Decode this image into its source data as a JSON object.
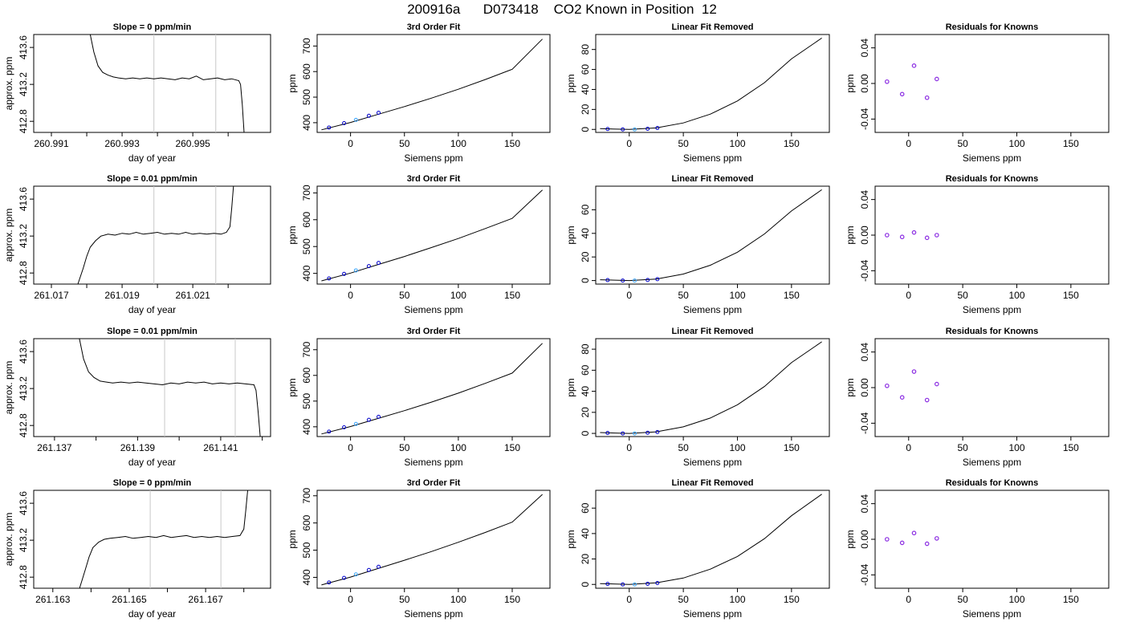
{
  "page": {
    "title": "200916a      D073418    CO2 Known in Position  12"
  },
  "labels": {
    "fit_title": "3rd Order Fit",
    "lin_title": "Linear Fit Removed",
    "res_title": "Residuals for Knowns",
    "siemens_xlabel": "Siemens ppm",
    "ppm_ylabel": "ppm",
    "ts_xlabel": "day of year",
    "ts_ylabel": "approx. ppm"
  },
  "chart_data": [
    {
      "row": 1,
      "timeseries": {
        "type": "line",
        "title": "Slope =  0  ppm/min",
        "xlabel": "day of year",
        "ylabel": "approx. ppm",
        "xlim": [
          260.9905,
          260.9972
        ],
        "ylim": [
          412.68,
          413.74
        ],
        "x_ticks": [
          260.991,
          260.993,
          260.995
        ],
        "x_minor_ticks": [
          260.992,
          260.994,
          260.996
        ],
        "y_ticks": [
          412.8,
          413.2,
          413.6
        ],
        "vlines": [
          260.9939,
          260.99565
        ],
        "x": [
          260.9921,
          260.9922,
          260.99232,
          260.99245,
          260.9926,
          260.99275,
          260.9929,
          260.9931,
          260.9933,
          260.9935,
          260.9937,
          260.9939,
          260.9941,
          260.9943,
          260.9945,
          260.9947,
          260.9949,
          260.9951,
          260.9953,
          260.9955,
          260.9957,
          260.9959,
          260.9961,
          260.9963,
          260.99635,
          260.9964,
          260.99645
        ],
        "y": [
          413.74,
          413.55,
          413.4,
          413.33,
          413.3,
          413.28,
          413.27,
          413.26,
          413.27,
          413.26,
          413.27,
          413.26,
          413.27,
          413.26,
          413.25,
          413.27,
          413.26,
          413.29,
          413.25,
          413.26,
          413.27,
          413.25,
          413.26,
          413.24,
          413.2,
          412.98,
          412.68
        ]
      },
      "fit": {
        "type": "line",
        "title": "3rd Order Fit",
        "xlabel": "Siemens ppm",
        "ylabel": "ppm",
        "xlim": [
          -31,
          185
        ],
        "ylim": [
          362,
          745
        ],
        "x_ticks": [
          0,
          50,
          100,
          150
        ],
        "y_ticks": [
          400,
          500,
          600,
          700
        ],
        "curve_x": [
          -27,
          0,
          25,
          50,
          75,
          100,
          125,
          150,
          178
        ],
        "curve_y": [
          372,
          401,
          432,
          463,
          496,
          531,
          569,
          609,
          727
        ],
        "points_x": [
          -20,
          -6,
          5,
          17,
          26
        ],
        "points_y": [
          381,
          398,
          411,
          427,
          439
        ]
      },
      "linear_removed": {
        "type": "line",
        "title": "Linear Fit Removed",
        "xlabel": "Siemens ppm",
        "ylabel": "ppm",
        "xlim": [
          -31,
          185
        ],
        "ylim": [
          -3,
          95
        ],
        "x_ticks": [
          0,
          50,
          100,
          150
        ],
        "y_ticks": [
          0,
          20,
          40,
          60,
          80
        ],
        "curve_x": [
          -27,
          0,
          25,
          50,
          75,
          100,
          125,
          150,
          178
        ],
        "curve_y": [
          0.8,
          0.0,
          1.5,
          6.5,
          15.3,
          28.5,
          46.8,
          70.6,
          91.5
        ],
        "points_x": [
          -20,
          -6,
          5,
          17,
          26
        ],
        "points_y": [
          0.4,
          0.0,
          0.0,
          0.6,
          1.4
        ]
      },
      "residuals": {
        "type": "scatter",
        "title": "Residuals for Knowns",
        "xlabel": "Siemens ppm",
        "ylabel": "ppm",
        "xlim": [
          -31,
          185
        ],
        "ylim": [
          -0.055,
          0.055
        ],
        "x_ticks": [
          0,
          50,
          100,
          150
        ],
        "y_ticks": [
          -0.04,
          0.0,
          0.04
        ],
        "y_tick_labels": [
          "-0.04",
          "0.00",
          "0.04"
        ],
        "x": [
          -20,
          -6,
          5,
          17,
          26
        ],
        "y": [
          0.002,
          -0.012,
          0.02,
          -0.016,
          0.005
        ]
      }
    },
    {
      "row": 2,
      "timeseries": {
        "type": "line",
        "title": "Slope =  0.01  ppm/min",
        "xlabel": "day of year",
        "ylabel": "approx. ppm",
        "xlim": [
          261.0165,
          261.0232
        ],
        "ylim": [
          412.68,
          413.74
        ],
        "x_ticks": [
          261.017,
          261.019,
          261.021
        ],
        "x_minor_ticks": [
          261.018,
          261.02,
          261.022
        ],
        "y_ticks": [
          412.8,
          413.2,
          413.6
        ],
        "vlines": [
          261.0199,
          261.02165
        ],
        "x": [
          261.01775,
          261.0179,
          261.018,
          261.0181,
          261.01825,
          261.0184,
          261.0186,
          261.0188,
          261.019,
          261.0192,
          261.0194,
          261.0196,
          261.0198,
          261.02,
          261.0202,
          261.0204,
          261.0206,
          261.0208,
          261.021,
          261.0212,
          261.0214,
          261.0216,
          261.0218,
          261.02195,
          261.02205,
          261.0221,
          261.02215
        ],
        "y": [
          412.68,
          412.85,
          412.98,
          413.08,
          413.15,
          413.2,
          413.22,
          413.21,
          413.23,
          413.22,
          413.24,
          413.22,
          413.23,
          413.24,
          413.22,
          413.23,
          413.22,
          413.24,
          413.22,
          413.23,
          413.22,
          413.23,
          413.22,
          413.24,
          413.3,
          413.5,
          413.74
        ]
      },
      "fit": {
        "type": "line",
        "title": "3rd Order Fit",
        "xlabel": "Siemens ppm",
        "ylabel": "ppm",
        "xlim": [
          -31,
          185
        ],
        "ylim": [
          360,
          725
        ],
        "x_ticks": [
          0,
          50,
          100,
          150
        ],
        "y_ticks": [
          400,
          500,
          600,
          700
        ],
        "curve_x": [
          -27,
          0,
          25,
          50,
          75,
          100,
          125,
          150,
          178
        ],
        "curve_y": [
          372,
          401,
          432,
          463,
          496,
          530,
          567,
          605,
          711
        ],
        "points_x": [
          -20,
          -6,
          5,
          17,
          26
        ],
        "points_y": [
          381,
          398,
          411,
          427,
          439
        ]
      },
      "linear_removed": {
        "type": "line",
        "title": "Linear Fit Removed",
        "xlabel": "Siemens ppm",
        "ylabel": "ppm",
        "xlim": [
          -31,
          185
        ],
        "ylim": [
          -3,
          80
        ],
        "x_ticks": [
          0,
          50,
          100,
          150
        ],
        "y_ticks": [
          0,
          20,
          40,
          60
        ],
        "curve_x": [
          -27,
          0,
          25,
          50,
          75,
          100,
          125,
          150,
          178
        ],
        "curve_y": [
          0.7,
          0.0,
          1.3,
          5.5,
          13,
          24,
          39.5,
          59,
          77
        ],
        "points_x": [
          -20,
          -6,
          5,
          17,
          26
        ],
        "points_y": [
          0.4,
          0.0,
          0.0,
          0.5,
          1.2
        ]
      },
      "residuals": {
        "type": "scatter",
        "title": "Residuals for Knowns",
        "xlabel": "Siemens ppm",
        "ylabel": "ppm",
        "xlim": [
          -31,
          185
        ],
        "ylim": [
          -0.055,
          0.055
        ],
        "x_ticks": [
          0,
          50,
          100,
          150
        ],
        "y_ticks": [
          -0.04,
          0.0,
          0.04
        ],
        "y_tick_labels": [
          "-0.04",
          "0.00",
          "0.04"
        ],
        "x": [
          -20,
          -6,
          5,
          17,
          26
        ],
        "y": [
          0.0,
          -0.002,
          0.003,
          -0.003,
          0.0
        ]
      }
    },
    {
      "row": 3,
      "timeseries": {
        "type": "line",
        "title": "Slope =  0.01  ppm/min",
        "xlabel": "day of year",
        "ylabel": "approx. ppm",
        "xlim": [
          261.1365,
          261.1422
        ],
        "ylim": [
          412.68,
          413.74
        ],
        "x_ticks": [
          261.137,
          261.139,
          261.141
        ],
        "x_minor_ticks": [
          261.138,
          261.14,
          261.142
        ],
        "y_ticks": [
          412.8,
          413.2,
          413.6
        ],
        "vlines": [
          261.13965,
          261.14135
        ],
        "x": [
          261.1376,
          261.1377,
          261.13782,
          261.13795,
          261.1381,
          261.13825,
          261.1384,
          261.1386,
          261.1388,
          261.139,
          261.1392,
          261.1394,
          261.1396,
          261.1398,
          261.14,
          261.1402,
          261.1404,
          261.1406,
          261.1408,
          261.141,
          261.1412,
          261.1414,
          261.1416,
          261.1418,
          261.14185,
          261.1419,
          261.14195
        ],
        "y": [
          413.74,
          413.52,
          413.38,
          413.32,
          413.28,
          413.27,
          413.26,
          413.27,
          413.26,
          413.27,
          413.26,
          413.25,
          413.24,
          413.26,
          413.25,
          413.27,
          413.26,
          413.27,
          413.25,
          413.26,
          413.25,
          413.26,
          413.25,
          413.24,
          413.18,
          412.95,
          412.68
        ]
      },
      "fit": {
        "type": "line",
        "title": "3rd Order Fit",
        "xlabel": "Siemens ppm",
        "ylabel": "ppm",
        "xlim": [
          -31,
          185
        ],
        "ylim": [
          362,
          743
        ],
        "x_ticks": [
          0,
          50,
          100,
          150
        ],
        "y_ticks": [
          400,
          500,
          600,
          700
        ],
        "curve_x": [
          -27,
          0,
          25,
          50,
          75,
          100,
          125,
          150,
          178
        ],
        "curve_y": [
          372,
          401,
          432,
          463,
          496,
          531,
          569,
          609,
          725
        ],
        "points_x": [
          -20,
          -6,
          5,
          17,
          26
        ],
        "points_y": [
          381,
          398,
          411,
          427,
          439
        ]
      },
      "linear_removed": {
        "type": "line",
        "title": "Linear Fit Removed",
        "xlabel": "Siemens ppm",
        "ylabel": "ppm",
        "xlim": [
          -31,
          185
        ],
        "ylim": [
          -3,
          90
        ],
        "x_ticks": [
          0,
          50,
          100,
          150
        ],
        "y_ticks": [
          0,
          20,
          40,
          60,
          80
        ],
        "curve_x": [
          -27,
          0,
          25,
          50,
          75,
          100,
          125,
          150,
          178
        ],
        "curve_y": [
          0.8,
          0.0,
          1.5,
          6.2,
          14.6,
          27.2,
          44.6,
          67.2,
          87
        ],
        "points_x": [
          -20,
          -6,
          5,
          17,
          26
        ],
        "points_y": [
          0.4,
          0.0,
          0.0,
          0.6,
          1.3
        ]
      },
      "residuals": {
        "type": "scatter",
        "title": "Residuals for Knowns",
        "xlabel": "Siemens ppm",
        "ylabel": "ppm",
        "xlim": [
          -31,
          185
        ],
        "ylim": [
          -0.055,
          0.055
        ],
        "x_ticks": [
          0,
          50,
          100,
          150
        ],
        "y_ticks": [
          -0.04,
          0.0,
          0.04
        ],
        "y_tick_labels": [
          "-0.04",
          "0.00",
          "0.04"
        ],
        "x": [
          -20,
          -6,
          5,
          17,
          26
        ],
        "y": [
          0.002,
          -0.011,
          0.018,
          -0.014,
          0.004
        ]
      }
    },
    {
      "row": 4,
      "timeseries": {
        "type": "line",
        "title": "Slope =  0  ppm/min",
        "xlabel": "day of year",
        "ylabel": "approx. ppm",
        "xlim": [
          261.1625,
          261.1687
        ],
        "ylim": [
          412.68,
          413.74
        ],
        "x_ticks": [
          261.163,
          261.165,
          261.167
        ],
        "x_minor_ticks": [
          261.164,
          261.166,
          261.168
        ],
        "y_ticks": [
          412.8,
          413.2,
          413.6
        ],
        "vlines": [
          261.16555,
          261.1674
        ],
        "x": [
          261.1637,
          261.16385,
          261.16395,
          261.16405,
          261.1642,
          261.16435,
          261.1645,
          261.1647,
          261.1649,
          261.1651,
          261.1653,
          261.1655,
          261.1657,
          261.1659,
          261.1661,
          261.1663,
          261.1665,
          261.1667,
          261.1669,
          261.1671,
          261.1673,
          261.1675,
          261.1677,
          261.1679,
          261.168,
          261.16805,
          261.1681
        ],
        "y": [
          412.68,
          412.88,
          413.02,
          413.12,
          413.18,
          413.21,
          413.22,
          413.23,
          413.24,
          413.22,
          413.23,
          413.24,
          413.23,
          413.25,
          413.23,
          413.24,
          413.25,
          413.23,
          413.24,
          413.23,
          413.24,
          413.23,
          413.24,
          413.25,
          413.32,
          413.52,
          413.74
        ]
      },
      "fit": {
        "type": "line",
        "title": "3rd Order Fit",
        "xlabel": "Siemens ppm",
        "ylabel": "ppm",
        "xlim": [
          -31,
          185
        ],
        "ylim": [
          360,
          720
        ],
        "x_ticks": [
          0,
          50,
          100,
          150
        ],
        "y_ticks": [
          400,
          500,
          600,
          700
        ],
        "curve_x": [
          -27,
          0,
          25,
          50,
          75,
          100,
          125,
          150,
          178
        ],
        "curve_y": [
          372,
          401,
          432,
          463,
          495,
          529,
          565,
          603,
          705
        ],
        "points_x": [
          -20,
          -6,
          5,
          17,
          26
        ],
        "points_y": [
          381,
          398,
          411,
          427,
          439
        ]
      },
      "linear_removed": {
        "type": "line",
        "title": "Linear Fit Removed",
        "xlabel": "Siemens ppm",
        "ylabel": "ppm",
        "xlim": [
          -31,
          185
        ],
        "ylim": [
          -3,
          74
        ],
        "x_ticks": [
          0,
          50,
          100,
          150
        ],
        "y_ticks": [
          0,
          20,
          40,
          60
        ],
        "curve_x": [
          -27,
          0,
          25,
          50,
          75,
          100,
          125,
          150,
          178
        ],
        "curve_y": [
          0.6,
          0.0,
          1.2,
          5.0,
          12,
          22,
          36,
          54,
          71
        ],
        "points_x": [
          -20,
          -6,
          5,
          17,
          26
        ],
        "points_y": [
          0.4,
          0.0,
          0.0,
          0.5,
          1.1
        ]
      },
      "residuals": {
        "type": "scatter",
        "title": "Residuals for Knowns",
        "xlabel": "Siemens ppm",
        "ylabel": "ppm",
        "xlim": [
          -31,
          185
        ],
        "ylim": [
          -0.055,
          0.055
        ],
        "x_ticks": [
          0,
          50,
          100,
          150
        ],
        "y_ticks": [
          -0.04,
          0.0,
          0.04
        ],
        "y_tick_labels": [
          "-0.04",
          "0.00",
          "0.04"
        ],
        "x": [
          -20,
          -6,
          5,
          17,
          26
        ],
        "y": [
          0.0,
          -0.004,
          0.007,
          -0.005,
          0.001
        ]
      }
    }
  ]
}
